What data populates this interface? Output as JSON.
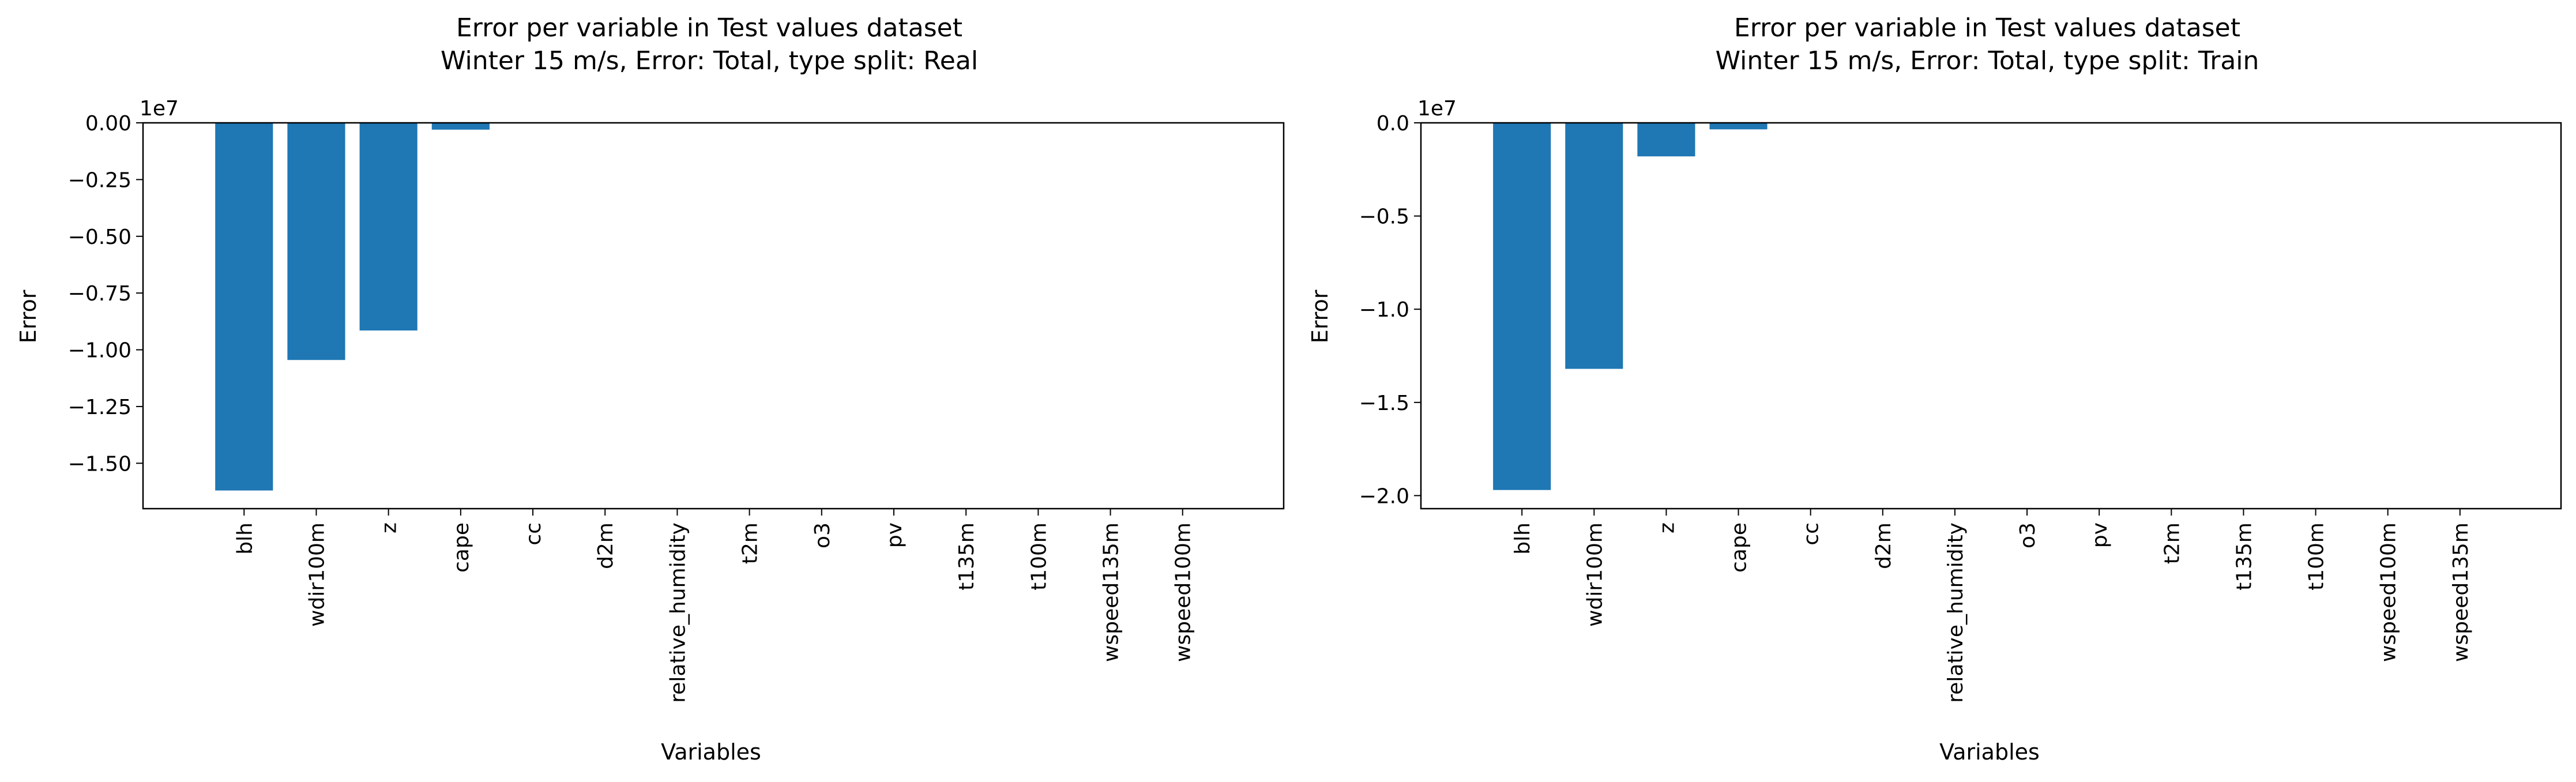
{
  "chart_data": [
    {
      "type": "bar",
      "title_line1": "Error per variable in Test values dataset",
      "title_line2": "Winter 15 m/s, Error: Total, type split: Real",
      "xlabel": "Variables",
      "ylabel": "Error",
      "offset_label": "1e7",
      "color": "#1f77b4",
      "ylim": [
        -1.7,
        0.0
      ],
      "yticks": [
        0.0,
        -0.25,
        -0.5,
        -0.75,
        -1.0,
        -1.25,
        -1.5
      ],
      "ytick_labels": [
        "0.00",
        "−0.25",
        "−0.50",
        "−0.75",
        "−1.00",
        "−1.25",
        "−1.50"
      ],
      "categories": [
        "blh",
        "wdir100m",
        "z",
        "cape",
        "cc",
        "d2m",
        "relative_humidity",
        "t2m",
        "o3",
        "pv",
        "t135m",
        "t100m",
        "wspeed135m",
        "wspeed100m"
      ],
      "values": [
        -1.62,
        -1.045,
        -0.915,
        -0.03,
        0,
        0,
        0,
        0,
        0,
        0,
        0,
        0,
        0,
        0
      ]
    },
    {
      "type": "bar",
      "title_line1": "Error per variable in Test values dataset",
      "title_line2": "Winter 15 m/s, Error: Total, type split: Train",
      "xlabel": "Variables",
      "ylabel": "Error",
      "offset_label": "1e7",
      "color": "#1f77b4",
      "ylim": [
        -2.07,
        0.0
      ],
      "yticks": [
        0.0,
        -0.5,
        -1.0,
        -1.5,
        -2.0
      ],
      "ytick_labels": [
        "0.0",
        "−0.5",
        "−1.0",
        "−1.5",
        "−2.0"
      ],
      "categories": [
        "blh",
        "wdir100m",
        "z",
        "cape",
        "cc",
        "d2m",
        "relative_humidity",
        "o3",
        "pv",
        "t2m",
        "t135m",
        "t100m",
        "wspeed100m",
        "wspeed135m"
      ],
      "values": [
        -1.97,
        -1.32,
        -0.18,
        -0.035,
        0,
        0,
        0,
        0,
        0,
        0,
        0,
        0,
        0,
        0
      ]
    }
  ]
}
